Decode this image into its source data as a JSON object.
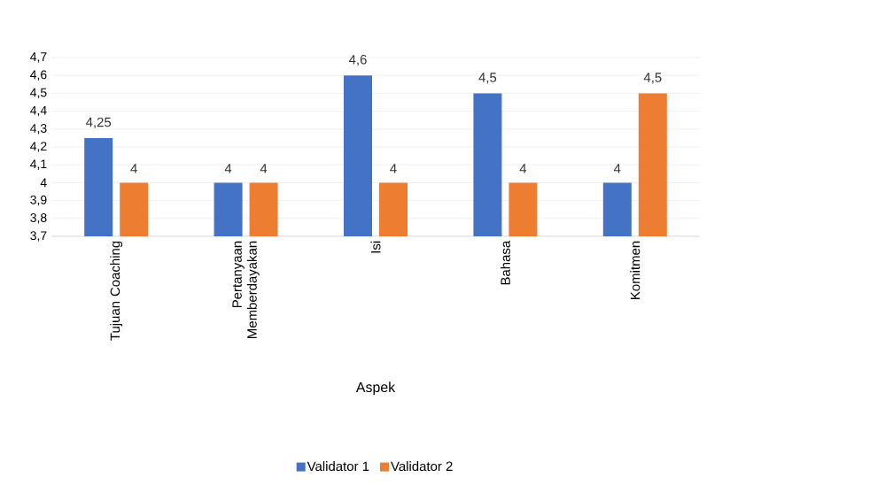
{
  "chart_data": {
    "type": "bar",
    "xlabel": "Aspek",
    "categories": [
      "Tujuan Coaching",
      "Pertanyaan Memberdayakan",
      "Isi",
      "Bahasa",
      "Komitmen"
    ],
    "series": [
      {
        "name": "Validator 1",
        "color": "#4472c4",
        "values": [
          4.25,
          4,
          4.6,
          4.5,
          4
        ],
        "value_labels": [
          "4,25",
          "4",
          "4,6",
          "4,5",
          "4"
        ]
      },
      {
        "name": "Validator 2",
        "color": "#ed7d31",
        "values": [
          4,
          4,
          4,
          4,
          4.5
        ],
        "value_labels": [
          "4",
          "4",
          "4",
          "4",
          "4,5"
        ]
      }
    ],
    "ylim": [
      3.7,
      4.7
    ],
    "yticks": [
      {
        "value": 3.7,
        "label": "3,7"
      },
      {
        "value": 3.8,
        "label": "3,8"
      },
      {
        "value": 3.9,
        "label": "3,9"
      },
      4,
      {
        "value": 4.1,
        "label": "4,1"
      },
      {
        "value": 4.2,
        "label": "4,2"
      },
      {
        "value": 4.3,
        "label": "4,3"
      },
      {
        "value": 4.4,
        "label": "4,4"
      },
      {
        "value": 4.5,
        "label": "4,5"
      },
      {
        "value": 4.6,
        "label": "4,6"
      },
      {
        "value": 4.7,
        "label": "4,7"
      }
    ],
    "grid": "y",
    "legend": "bottom"
  }
}
